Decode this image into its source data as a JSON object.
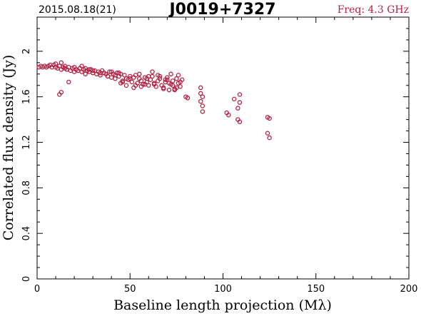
{
  "header": {
    "date_label": "2015.08.18(21)",
    "source_name": "J0019+7327",
    "freq_label": "Freq: 4.3 GHz"
  },
  "colors": {
    "marker": "#b22244",
    "axes": "#000000",
    "background": "#ffffff"
  },
  "chart_data": {
    "type": "scatter",
    "title": "J0019+7327",
    "xlabel": "Baseline length projection (Mλ)",
    "ylabel": "Correlated flux density (Jy)",
    "xlim": [
      0,
      200
    ],
    "ylim": [
      0,
      2.3
    ],
    "xticks": [
      0,
      50,
      100,
      150,
      200
    ],
    "yticks": [
      0,
      0.4,
      0.8,
      1.2,
      1.6,
      2
    ],
    "xtick_labels": [
      "0",
      "50",
      "100",
      "150",
      "200"
    ],
    "ytick_labels": [
      "0",
      "0.4",
      "0.8",
      "1.2",
      "1.6",
      "2"
    ],
    "grid": false,
    "marker": "open-circle",
    "series": [
      {
        "x": [
          1,
          2,
          3,
          4,
          5,
          6,
          7,
          8,
          9,
          10,
          10,
          11,
          12,
          13,
          13,
          14,
          15,
          15,
          16,
          17,
          18,
          19,
          20,
          20,
          21,
          22,
          23,
          24,
          25,
          26,
          27,
          28,
          29,
          30,
          31,
          32,
          33,
          34,
          35,
          36,
          37,
          38,
          39,
          40,
          41,
          42,
          43,
          44,
          45,
          46,
          47,
          48,
          49,
          50,
          51,
          52,
          53,
          54,
          55,
          56,
          57,
          58,
          59,
          60,
          61,
          62,
          63,
          64,
          65,
          66,
          67,
          68,
          69,
          70,
          71,
          72,
          73,
          74,
          75,
          76,
          77,
          78,
          80,
          81,
          88,
          88,
          88,
          89,
          89,
          89,
          102,
          103,
          106,
          108,
          108,
          109,
          109,
          109,
          124,
          124,
          125,
          125,
          12,
          13,
          17,
          45,
          48,
          52,
          55,
          58,
          60,
          62,
          65,
          68,
          70,
          72,
          74,
          76,
          40,
          42,
          44,
          46,
          50,
          53,
          56,
          59,
          63,
          66,
          69,
          71,
          73,
          75,
          77,
          30,
          34,
          38,
          24,
          26,
          28
        ],
        "y": [
          1.86,
          1.87,
          1.86,
          1.87,
          1.86,
          1.87,
          1.88,
          1.86,
          1.88,
          1.89,
          1.86,
          1.85,
          1.87,
          1.9,
          1.84,
          1.86,
          1.85,
          1.87,
          1.84,
          1.86,
          1.83,
          1.85,
          1.86,
          1.82,
          1.84,
          1.83,
          1.85,
          1.82,
          1.84,
          1.8,
          1.83,
          1.82,
          1.84,
          1.81,
          1.83,
          1.8,
          1.82,
          1.79,
          1.83,
          1.81,
          1.8,
          1.78,
          1.82,
          1.77,
          1.8,
          1.76,
          1.81,
          1.78,
          1.8,
          1.74,
          1.79,
          1.76,
          1.75,
          1.78,
          1.73,
          1.77,
          1.79,
          1.72,
          1.76,
          1.74,
          1.71,
          1.77,
          1.73,
          1.7,
          1.75,
          1.78,
          1.72,
          1.69,
          1.74,
          1.76,
          1.7,
          1.68,
          1.73,
          1.75,
          1.66,
          1.71,
          1.74,
          1.67,
          1.76,
          1.72,
          1.69,
          1.75,
          1.6,
          1.59,
          1.68,
          1.63,
          1.56,
          1.52,
          1.47,
          1.6,
          1.46,
          1.44,
          1.58,
          1.5,
          1.4,
          1.62,
          1.55,
          1.38,
          1.42,
          1.28,
          1.24,
          1.41,
          1.62,
          1.64,
          1.73,
          1.72,
          1.7,
          1.68,
          1.8,
          1.71,
          1.78,
          1.82,
          1.79,
          1.67,
          1.77,
          1.8,
          1.66,
          1.79,
          1.82,
          1.79,
          1.81,
          1.73,
          1.76,
          1.7,
          1.69,
          1.76,
          1.71,
          1.78,
          1.75,
          1.72,
          1.7,
          1.68,
          1.73,
          1.83,
          1.81,
          1.78,
          1.87,
          1.85,
          1.84
        ]
      }
    ]
  }
}
